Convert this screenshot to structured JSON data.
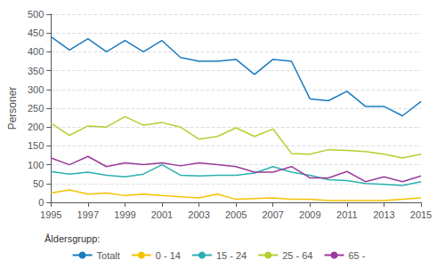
{
  "chart_data": {
    "type": "line",
    "y_label": "Personer",
    "annotations": [
      "Åldersgrupp:"
    ],
    "x": [
      1995,
      1996,
      1997,
      1998,
      1999,
      2000,
      2001,
      2002,
      2003,
      2004,
      2005,
      2006,
      2007,
      2008,
      2009,
      2010,
      2011,
      2012,
      2013,
      2014,
      2015
    ],
    "series": [
      {
        "name": "Totalt",
        "color": "#1a7abf",
        "values": [
          440,
          405,
          435,
          400,
          430,
          400,
          430,
          385,
          375,
          375,
          380,
          340,
          380,
          375,
          275,
          270,
          295,
          255,
          255,
          230,
          268
        ]
      },
      {
        "name": "0 - 14",
        "color": "#f5c200",
        "values": [
          25,
          33,
          22,
          25,
          18,
          22,
          18,
          15,
          12,
          22,
          8,
          10,
          12,
          8,
          8,
          5,
          5,
          5,
          5,
          8,
          12
        ]
      },
      {
        "name": "15 - 24",
        "color": "#2ab0b0",
        "values": [
          82,
          75,
          80,
          72,
          68,
          75,
          100,
          72,
          70,
          72,
          72,
          78,
          95,
          80,
          72,
          60,
          58,
          50,
          48,
          45,
          55
        ]
      },
      {
        "name": "25 - 64",
        "color": "#b8cc30",
        "values": [
          210,
          178,
          203,
          200,
          228,
          205,
          212,
          200,
          168,
          175,
          198,
          175,
          195,
          130,
          128,
          140,
          138,
          135,
          128,
          118,
          128
        ]
      },
      {
        "name": "65 -",
        "color": "#9b3a9b",
        "values": [
          118,
          100,
          122,
          95,
          105,
          100,
          105,
          97,
          105,
          100,
          95,
          80,
          80,
          95,
          65,
          65,
          82,
          55,
          68,
          55,
          70
        ]
      }
    ],
    "xlim": [
      1995,
      2015
    ],
    "xticks": [
      1995,
      1997,
      1999,
      2001,
      2003,
      2005,
      2007,
      2009,
      2011,
      2013,
      2015
    ],
    "ylim": [
      0,
      500
    ],
    "yticks": [
      0,
      50,
      100,
      150,
      200,
      250,
      300,
      350,
      400,
      450,
      500
    ],
    "grid": true,
    "legend": "bottom"
  }
}
